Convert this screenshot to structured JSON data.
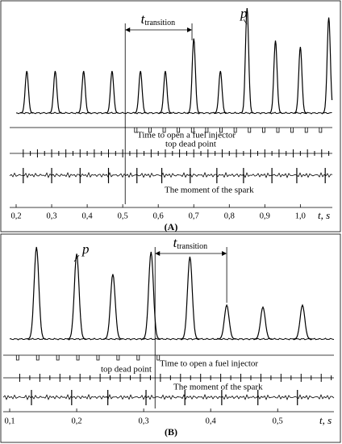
{
  "figure": {
    "panels": [
      {
        "panel_label": "(A)",
        "axis_label": "t, s",
        "xlim": [
          0.2,
          1.09
        ],
        "xticks": [
          {
            "value": 0.2,
            "label": "0,2"
          },
          {
            "value": 0.3,
            "label": "0,3"
          },
          {
            "value": 0.4,
            "label": "0,4"
          },
          {
            "value": 0.5,
            "label": "0,5"
          },
          {
            "value": 0.6,
            "label": "0,6"
          },
          {
            "value": 0.7,
            "label": "0,7"
          },
          {
            "value": 0.8,
            "label": "0,8"
          },
          {
            "value": 0.9,
            "label": "0,9"
          },
          {
            "value": 1.0,
            "label": "1,0"
          }
        ],
        "pressure": {
          "name": "p",
          "t": [
            0.23,
            0.31,
            0.39,
            0.47,
            0.55,
            0.62,
            0.7,
            0.775,
            0.85,
            0.93,
            1.0,
            1.08
          ],
          "values": [
            40,
            40,
            40,
            40,
            40,
            40,
            71,
            40,
            100,
            69,
            63,
            91
          ]
        },
        "transition": {
          "label_t": "t",
          "label_sub": "transition",
          "start": 0.507,
          "end": 0.695
        },
        "annotations": {
          "injector": "Time to open a fuel injector",
          "tdc": "top dead point",
          "spark": "The moment of the spark"
        }
      },
      {
        "panel_label": "(B)",
        "axis_label": "t, s",
        "xlim": [
          0.1,
          0.584
        ],
        "xticks": [
          {
            "value": 0.1,
            "label": "0,1"
          },
          {
            "value": 0.2,
            "label": "0,2"
          },
          {
            "value": 0.3,
            "label": "0,3"
          },
          {
            "value": 0.4,
            "label": "0,4"
          },
          {
            "value": 0.5,
            "label": "0,5"
          }
        ],
        "pressure": {
          "name": "p",
          "t": [
            0.14,
            0.2,
            0.254,
            0.311,
            0.369,
            0.424,
            0.478,
            0.537
          ],
          "values": [
            95,
            88,
            67,
            90,
            85,
            35,
            33,
            35
          ]
        },
        "transition": {
          "label_t": "t",
          "label_sub": "transition",
          "start": 0.317,
          "end": 0.424
        },
        "annotations": {
          "injector": "Time to open a fuel injector",
          "tdc": "top dead point",
          "spark": "The moment of the spark"
        }
      }
    ]
  }
}
